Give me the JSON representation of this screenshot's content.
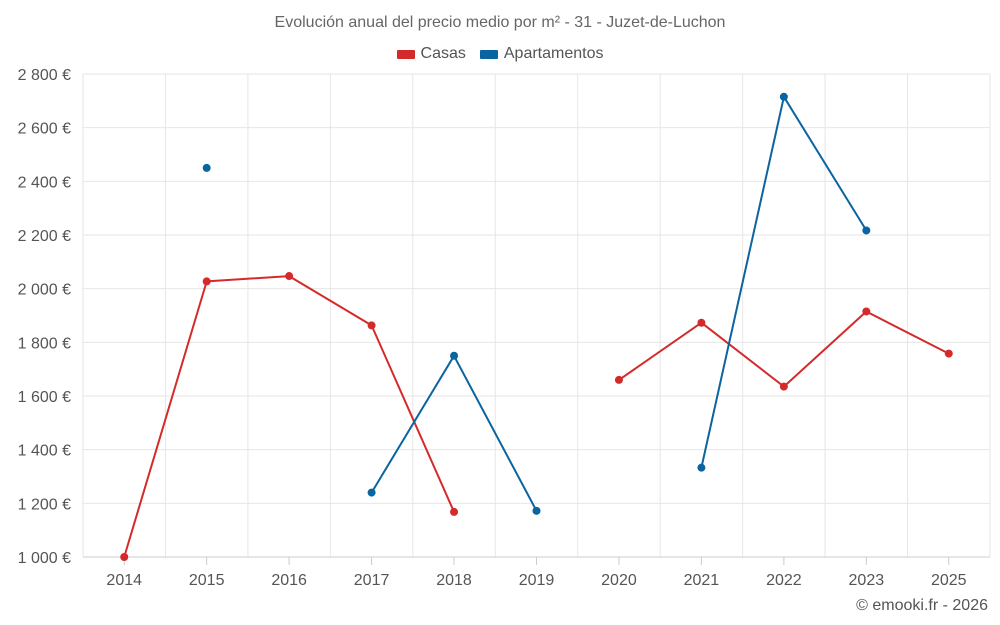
{
  "chart_data": {
    "type": "line",
    "title": "Evolución anual del precio medio por m² - 31 - Juzet-de-Luchon",
    "categories": [
      "2014",
      "2015",
      "2016",
      "2017",
      "2018",
      "2019",
      "2020",
      "2021",
      "2022",
      "2023",
      "2025"
    ],
    "ylim": [
      1000,
      2800
    ],
    "yticks": [
      1000,
      1200,
      1400,
      1600,
      1800,
      2000,
      2200,
      2400,
      2600,
      2800
    ],
    "ytick_labels": [
      "1 000 €",
      "1 200 €",
      "1 400 €",
      "1 600 €",
      "1 800 €",
      "2 000 €",
      "2 200 €",
      "2 400 €",
      "2 600 €",
      "2 800 €"
    ],
    "xlabel": "",
    "ylabel": "",
    "legend_position": "top-center",
    "series": [
      {
        "name": "Casas",
        "color": "#d42a2a",
        "values": [
          1000,
          2027,
          2047,
          1863,
          1168,
          null,
          1660,
          1873,
          1635,
          1915,
          1758
        ]
      },
      {
        "name": "Apartamentos",
        "color": "#0a64a0",
        "values": [
          null,
          2450,
          null,
          1240,
          1750,
          1172,
          null,
          1333,
          2715,
          2217,
          null
        ]
      }
    ]
  },
  "credit": "© emooki.fr - 2026"
}
